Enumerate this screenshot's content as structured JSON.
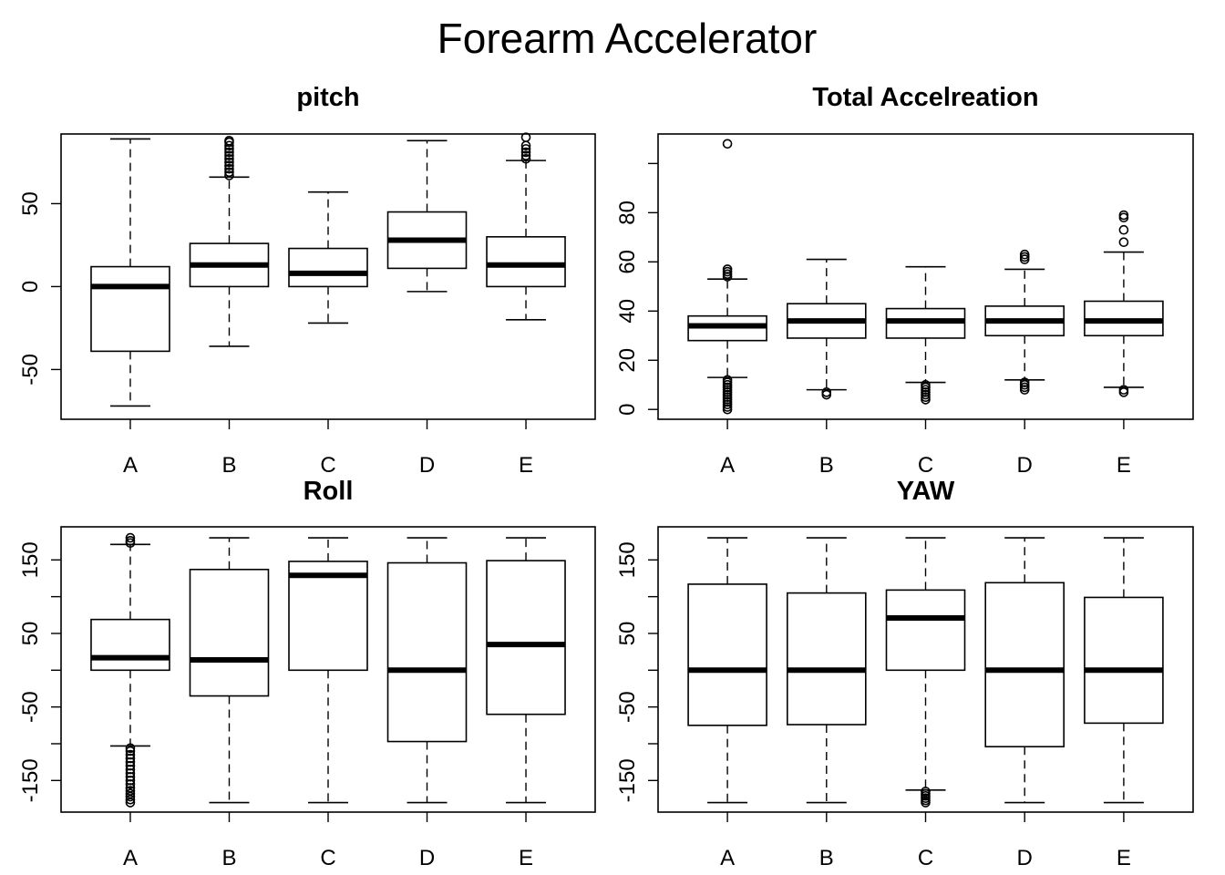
{
  "figure": {
    "title": "Forearm Accelerator"
  },
  "chart_data": [
    {
      "type": "boxplot",
      "title": "pitch",
      "xlabel": "",
      "ylabel": "",
      "categories": [
        "A",
        "B",
        "C",
        "D",
        "E"
      ],
      "ylim": [
        -80,
        92
      ],
      "yticks": [
        -50,
        0,
        50
      ],
      "ytick_labels": [
        "-50",
        "0",
        "50"
      ],
      "boxes": [
        {
          "whisker_low": -72,
          "q1": -39,
          "median": 0,
          "q3": 12,
          "whisker_high": 89,
          "outliers": []
        },
        {
          "whisker_low": -36,
          "q1": 0,
          "median": 13,
          "q3": 26,
          "whisker_high": 66,
          "outliers": [
            67,
            69,
            71,
            73,
            75,
            77,
            79,
            81,
            83,
            85,
            87,
            88
          ]
        },
        {
          "whisker_low": -22,
          "q1": 0,
          "median": 8,
          "q3": 23,
          "whisker_high": 57,
          "outliers": []
        },
        {
          "whisker_low": -3,
          "q1": 11,
          "median": 28,
          "q3": 45,
          "whisker_high": 88,
          "outliers": []
        },
        {
          "whisker_low": -20,
          "q1": 0,
          "median": 13,
          "q3": 30,
          "whisker_high": 76,
          "outliers": [
            77,
            79,
            81,
            83,
            85,
            90
          ]
        }
      ]
    },
    {
      "type": "boxplot",
      "title": "Total Accelreation",
      "xlabel": "",
      "ylabel": "",
      "categories": [
        "A",
        "B",
        "C",
        "D",
        "E"
      ],
      "ylim": [
        -4,
        112
      ],
      "yticks": [
        0,
        20,
        40,
        60,
        80,
        100
      ],
      "ytick_labels": [
        "0",
        "20",
        "40",
        "60",
        "80",
        ""
      ],
      "boxes": [
        {
          "whisker_low": 13,
          "q1": 28,
          "median": 34,
          "q3": 38,
          "whisker_high": 53,
          "outliers": [
            0,
            1,
            2,
            3,
            4,
            5,
            6,
            7,
            8,
            9,
            10,
            11,
            12,
            54,
            55,
            56,
            57,
            108
          ]
        },
        {
          "whisker_low": 8,
          "q1": 29,
          "median": 36,
          "q3": 43,
          "whisker_high": 61,
          "outliers": [
            6,
            7
          ]
        },
        {
          "whisker_low": 11,
          "q1": 29,
          "median": 36,
          "q3": 41,
          "whisker_high": 58,
          "outliers": [
            4,
            5,
            6,
            7,
            8,
            9,
            10
          ]
        },
        {
          "whisker_low": 12,
          "q1": 30,
          "median": 36,
          "q3": 42,
          "whisker_high": 57,
          "outliers": [
            8,
            9,
            10,
            11,
            61,
            62,
            63
          ]
        },
        {
          "whisker_low": 9,
          "q1": 30,
          "median": 36,
          "q3": 44,
          "whisker_high": 64,
          "outliers": [
            7,
            8,
            68,
            73,
            78,
            79
          ]
        }
      ]
    },
    {
      "type": "boxplot",
      "title": "Roll",
      "xlabel": "",
      "ylabel": "",
      "categories": [
        "A",
        "B",
        "C",
        "D",
        "E"
      ],
      "ylim": [
        -193,
        195
      ],
      "yticks": [
        -150,
        -100,
        -50,
        0,
        50,
        100,
        150
      ],
      "ytick_labels": [
        "-150",
        "",
        "-50",
        "",
        "50",
        "",
        "150"
      ],
      "boxes": [
        {
          "whisker_low": -103,
          "q1": 0,
          "median": 17,
          "q3": 69,
          "whisker_high": 171,
          "outliers": [
            -180,
            -176,
            -172,
            -168,
            -164,
            -160,
            -155,
            -150,
            -145,
            -140,
            -135,
            -130,
            -125,
            -120,
            -115,
            -110,
            -106,
            173,
            176,
            180
          ]
        },
        {
          "whisker_low": -180,
          "q1": -35,
          "median": 14,
          "q3": 137,
          "whisker_high": 180,
          "outliers": []
        },
        {
          "whisker_low": -180,
          "q1": 0,
          "median": 129,
          "q3": 148,
          "whisker_high": 180,
          "outliers": []
        },
        {
          "whisker_low": -180,
          "q1": -97,
          "median": 0,
          "q3": 146,
          "whisker_high": 180,
          "outliers": []
        },
        {
          "whisker_low": -180,
          "q1": -60,
          "median": 35,
          "q3": 149,
          "whisker_high": 180,
          "outliers": []
        }
      ]
    },
    {
      "type": "boxplot",
      "title": "YAW",
      "xlabel": "",
      "ylabel": "",
      "categories": [
        "A",
        "B",
        "C",
        "D",
        "E"
      ],
      "ylim": [
        -193,
        195
      ],
      "yticks": [
        -150,
        -100,
        -50,
        0,
        50,
        100,
        150
      ],
      "ytick_labels": [
        "-150",
        "",
        "-50",
        "",
        "50",
        "",
        "150"
      ],
      "boxes": [
        {
          "whisker_low": -180,
          "q1": -75,
          "median": 0,
          "q3": 117,
          "whisker_high": 180,
          "outliers": []
        },
        {
          "whisker_low": -180,
          "q1": -74,
          "median": 0,
          "q3": 105,
          "whisker_high": 180,
          "outliers": []
        },
        {
          "whisker_low": -163,
          "q1": 0,
          "median": 71,
          "q3": 109,
          "whisker_high": 180,
          "outliers": [
            -165,
            -168,
            -171,
            -174,
            -177,
            -180
          ]
        },
        {
          "whisker_low": -180,
          "q1": -104,
          "median": 0,
          "q3": 119,
          "whisker_high": 180,
          "outliers": []
        },
        {
          "whisker_low": -180,
          "q1": -72,
          "median": 0,
          "q3": 99,
          "whisker_high": 180,
          "outliers": []
        }
      ]
    }
  ]
}
